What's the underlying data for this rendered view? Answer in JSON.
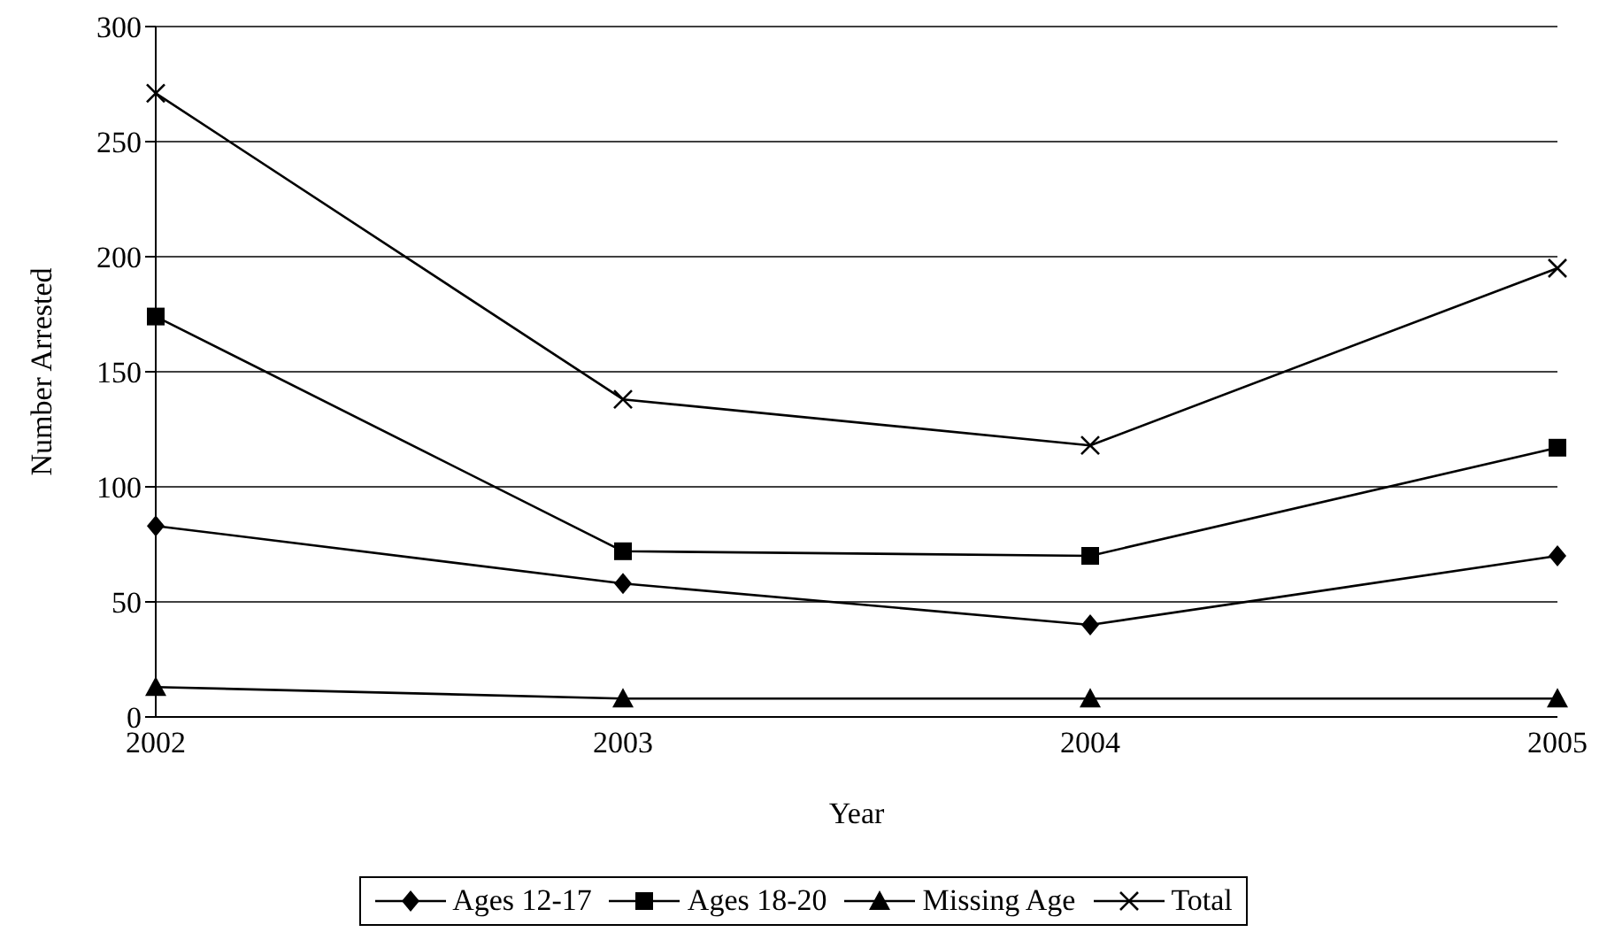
{
  "chart_data": {
    "type": "line",
    "xlabel": "Year",
    "ylabel": "Number Arrested",
    "categories": [
      "2002",
      "2003",
      "2004",
      "2005"
    ],
    "series": [
      {
        "name": "Ages 12-17",
        "color": "#000000",
        "marker": "diamond",
        "values": [
          83,
          58,
          40,
          70
        ]
      },
      {
        "name": "Ages 18-20",
        "color": "#000000",
        "marker": "square",
        "values": [
          174,
          72,
          70,
          117
        ]
      },
      {
        "name": "Missing Age",
        "color": "#000000",
        "marker": "triangle",
        "values": [
          13,
          8,
          8,
          8
        ]
      },
      {
        "name": "Total",
        "color": "#000000",
        "marker": "cross",
        "values": [
          271,
          138,
          118,
          195
        ]
      }
    ],
    "ylim": [
      0,
      300
    ],
    "yticks": [
      0,
      50,
      100,
      150,
      200,
      250,
      300
    ],
    "grid": "y",
    "legend": "bottom"
  }
}
